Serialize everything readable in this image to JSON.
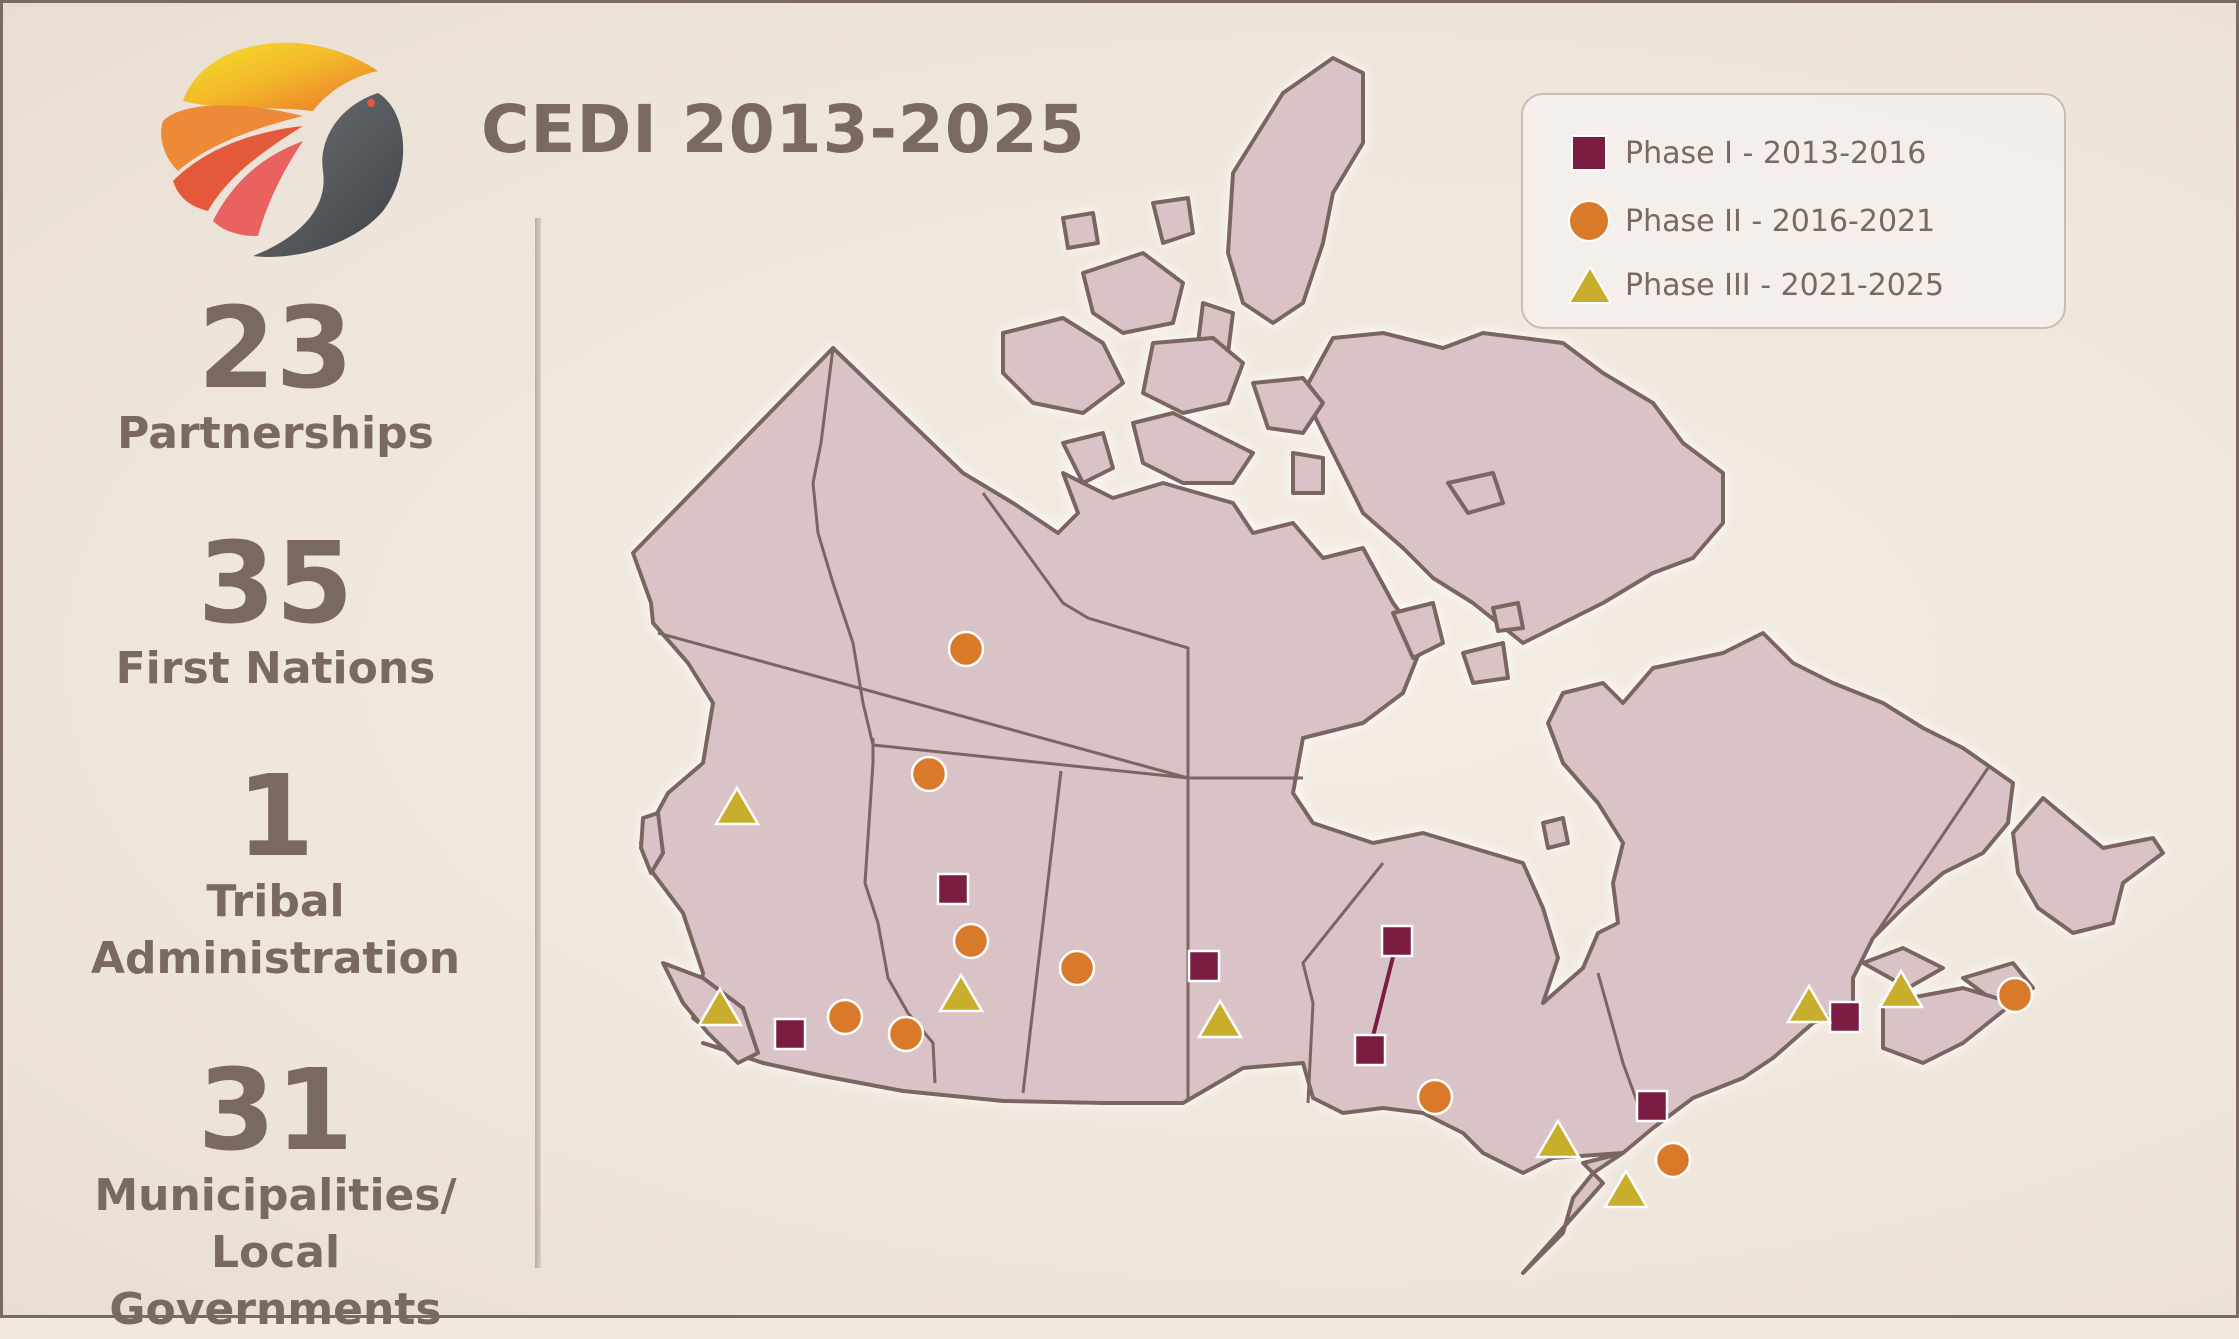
{
  "title": "CEDI 2013-2025",
  "stats": [
    {
      "number": "23",
      "label": "Partnerships"
    },
    {
      "number": "35",
      "label": "First Nations"
    },
    {
      "number": "1",
      "label_lines": [
        "Tribal",
        "Administration"
      ]
    },
    {
      "number": "31",
      "label_lines": [
        "Municipalities/",
        "Local Governments"
      ]
    }
  ],
  "legend": [
    {
      "label": "Phase I - 2013-2016",
      "symbol": "square",
      "color": "#7b1d42"
    },
    {
      "label": "Phase II - 2016-2021",
      "symbol": "circle",
      "color": "#d97a2b"
    },
    {
      "label": "Phase III - 2021-2025",
      "symbol": "triangle",
      "color": "#c9ad2c"
    }
  ],
  "colors": {
    "land": "#d9c3c6",
    "border": "#7a6560",
    "text": "#7a6862",
    "phase1": "#7b1d42",
    "phase2": "#d97a2b",
    "phase3": "#c9ad2c"
  },
  "logo": "cedi-logo-bird-sun"
}
